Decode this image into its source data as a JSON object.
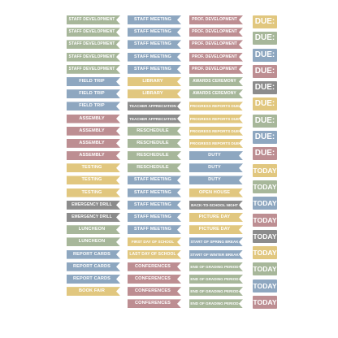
{
  "colors": {
    "green": "#a7b79a",
    "blue": "#8ea7c0",
    "rose": "#bd8e92",
    "yellow": "#e1c77f",
    "grey": "#8c8c8c"
  },
  "col1": [
    {
      "label": "STAFF DEVELOPMENT",
      "color": "green"
    },
    {
      "label": "STAFF DEVELOPMENT",
      "color": "green"
    },
    {
      "label": "STAFF DEVELOPMENT",
      "color": "green"
    },
    {
      "label": "STAFF DEVELOPMENT",
      "color": "green"
    },
    {
      "label": "STAFF DEVELOPMENT",
      "color": "green"
    },
    {
      "label": "FIELD TRIP",
      "color": "blue"
    },
    {
      "label": "FIELD TRIP",
      "color": "blue"
    },
    {
      "label": "FIELD TRIP",
      "color": "blue"
    },
    {
      "label": "ASSEMBLY",
      "color": "rose"
    },
    {
      "label": "ASSEMBLY",
      "color": "rose"
    },
    {
      "label": "ASSEMBLY",
      "color": "rose"
    },
    {
      "label": "ASSEMBLY",
      "color": "rose"
    },
    {
      "label": "TESTING",
      "color": "yellow"
    },
    {
      "label": "TESTING",
      "color": "yellow"
    },
    {
      "label": "TESTING",
      "color": "yellow"
    },
    {
      "label": "EMERGENCY DRILL",
      "color": "grey"
    },
    {
      "label": "EMERGENCY DRILL",
      "color": "grey"
    },
    {
      "label": "LUNCHEON",
      "color": "green"
    },
    {
      "label": "LUNCHEON",
      "color": "green"
    },
    {
      "label": "REPORT CARDS",
      "color": "blue"
    },
    {
      "label": "REPORT CARDS",
      "color": "blue"
    },
    {
      "label": "REPORT CARDS",
      "color": "blue"
    },
    {
      "label": "BOOK FAIR",
      "color": "yellow"
    }
  ],
  "col2": [
    {
      "label": "STAFF MEETING",
      "color": "blue"
    },
    {
      "label": "STAFF MEETING",
      "color": "blue"
    },
    {
      "label": "STAFF MEETING",
      "color": "blue"
    },
    {
      "label": "STAFF MEETING",
      "color": "blue"
    },
    {
      "label": "STAFF MEETING",
      "color": "blue"
    },
    {
      "label": "LIBRARY",
      "color": "yellow"
    },
    {
      "label": "LIBRARY",
      "color": "yellow"
    },
    {
      "label": "TEACHER APPRECIATION",
      "color": "grey"
    },
    {
      "label": "TEACHER APPRECIATION",
      "color": "grey"
    },
    {
      "label": "RESCHEDULE",
      "color": "green"
    },
    {
      "label": "RESCHEDULE",
      "color": "green"
    },
    {
      "label": "RESCHEDULE",
      "color": "green"
    },
    {
      "label": "RESCHEDULE",
      "color": "green"
    },
    {
      "label": "STAFF MEETING",
      "color": "blue"
    },
    {
      "label": "STAFF MEETING",
      "color": "blue"
    },
    {
      "label": "STAFF MEETING",
      "color": "blue"
    },
    {
      "label": "STAFF MEETING",
      "color": "blue"
    },
    {
      "label": "STAFF MEETING",
      "color": "blue"
    },
    {
      "label": "FIRST DAY OF SCHOOL",
      "color": "yellow"
    },
    {
      "label": "LAST DAY OF SCHOOL",
      "color": "yellow"
    },
    {
      "label": "CONFERENCES",
      "color": "rose"
    },
    {
      "label": "CONFERENCES",
      "color": "rose"
    },
    {
      "label": "CONFERENCES",
      "color": "rose"
    },
    {
      "label": "CONFERENCES",
      "color": "rose"
    }
  ],
  "col3": [
    {
      "label": "PROF. DEVELOPMENT",
      "color": "rose"
    },
    {
      "label": "PROF. DEVELOPMENT",
      "color": "rose"
    },
    {
      "label": "PROF. DEVELOPMENT",
      "color": "rose"
    },
    {
      "label": "PROF. DEVELOPMENT",
      "color": "rose"
    },
    {
      "label": "PROF. DEVELOPMENT",
      "color": "rose"
    },
    {
      "label": "AWARDS CEREMONY",
      "color": "green"
    },
    {
      "label": "AWARDS CEREMONY",
      "color": "green"
    },
    {
      "label": "PROGRESS REPORTS DUE",
      "color": "yellow"
    },
    {
      "label": "PROGRESS REPORTS DUE",
      "color": "yellow"
    },
    {
      "label": "PROGRESS REPORTS DUE",
      "color": "yellow"
    },
    {
      "label": "PROGRESS REPORTS DUE",
      "color": "yellow"
    },
    {
      "label": "DUTY",
      "color": "blue"
    },
    {
      "label": "DUTY",
      "color": "blue"
    },
    {
      "label": "DUTY",
      "color": "blue"
    },
    {
      "label": "OPEN HOUSE",
      "color": "yellow"
    },
    {
      "label": "BACK-TO-SCHOOL NIGHT",
      "color": "grey"
    },
    {
      "label": "PICTURE DAY",
      "color": "yellow"
    },
    {
      "label": "PICTURE DAY",
      "color": "yellow"
    },
    {
      "label": "START OF SPRING BREAK",
      "color": "blue"
    },
    {
      "label": "START OF WINTER BREAK",
      "color": "blue"
    },
    {
      "label": "END OF GRADING PERIOD",
      "color": "green"
    },
    {
      "label": "END OF GRADING PERIOD",
      "color": "green"
    },
    {
      "label": "END OF GRADING PERIOD",
      "color": "green"
    },
    {
      "label": "END OF GRADING PERIOD",
      "color": "green"
    }
  ],
  "col4": [
    {
      "label": "DUE:",
      "color": "yellow"
    },
    {
      "label": "DUE:",
      "color": "green"
    },
    {
      "label": "DUE:",
      "color": "blue"
    },
    {
      "label": "DUE:",
      "color": "rose"
    },
    {
      "label": "DUE:",
      "color": "grey"
    },
    {
      "label": "DUE:",
      "color": "yellow"
    },
    {
      "label": "DUE:",
      "color": "green"
    },
    {
      "label": "DUE:",
      "color": "blue"
    },
    {
      "label": "DUE:",
      "color": "rose"
    },
    {
      "label": "TODAY",
      "color": "yellow"
    },
    {
      "label": "TODAY",
      "color": "green"
    },
    {
      "label": "TODAY",
      "color": "blue"
    },
    {
      "label": "TODAY",
      "color": "rose"
    },
    {
      "label": "TODAY",
      "color": "grey"
    },
    {
      "label": "TODAY",
      "color": "yellow"
    },
    {
      "label": "TODAY",
      "color": "green"
    },
    {
      "label": "TODAY",
      "color": "blue"
    },
    {
      "label": "TODAY",
      "color": "rose"
    }
  ]
}
